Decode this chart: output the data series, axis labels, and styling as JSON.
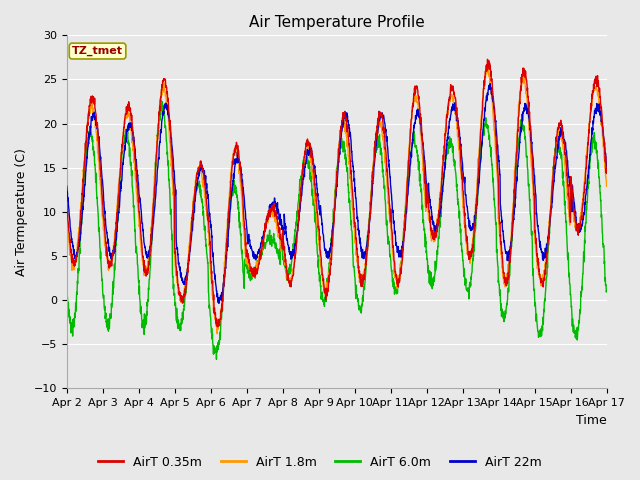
{
  "title": "Air Temperature Profile",
  "xlabel": "Time",
  "ylabel": "Air Termperature (C)",
  "ylim": [
    -10,
    30
  ],
  "xlim": [
    0,
    15
  ],
  "background_color": "#e8e8e8",
  "plot_bg_color": "#e8e8e8",
  "colors": {
    "AirT 0.35m": "#dd0000",
    "AirT 1.8m": "#ff9900",
    "AirT 6.0m": "#00bb00",
    "AirT 22m": "#0000cc"
  },
  "legend_labels": [
    "AirT 0.35m",
    "AirT 1.8m",
    "AirT 6.0m",
    "AirT 22m"
  ],
  "annotation_text": "TZ_tmet",
  "annotation_color": "#990000",
  "annotation_bg": "#ffffcc",
  "x_tick_labels": [
    "Apr 2",
    "Apr 3",
    "Apr 4",
    "Apr 5",
    "Apr 6",
    "Apr 7",
    "Apr 8",
    "Apr 9",
    "Apr 10",
    "Apr 11",
    "Apr 12",
    "Apr 13",
    "Apr 14",
    "Apr 15",
    "Apr 16",
    "Apr 17"
  ],
  "n_days": 15,
  "points_per_day": 144,
  "title_fontsize": 11,
  "tick_fontsize": 8,
  "label_fontsize": 9,
  "linewidth": 1.0,
  "peaks_035": [
    23,
    22,
    25,
    15.5,
    17.5,
    10.5,
    18,
    21,
    21,
    24,
    24,
    27,
    26,
    20,
    25
  ],
  "troughs_035": [
    4,
    4,
    3,
    0,
    -3,
    3,
    2,
    1,
    2,
    2,
    7,
    5,
    2,
    2,
    8
  ],
  "peaks_18": [
    22,
    21,
    24,
    15,
    17,
    10,
    17,
    20,
    20,
    23,
    23,
    26,
    25,
    19,
    24
  ],
  "troughs_18": [
    4,
    4,
    3,
    0,
    -3,
    3,
    2,
    1,
    2,
    2,
    7,
    5,
    2,
    2,
    8
  ],
  "peaks_60": [
    19,
    19,
    22,
    13,
    13,
    7,
    16,
    18,
    18,
    18,
    18,
    20,
    20,
    18,
    18
  ],
  "troughs_60": [
    -3,
    -3,
    -3,
    -3,
    -6,
    3,
    3,
    0,
    -1,
    1,
    2,
    1,
    -2,
    -4,
    -4
  ],
  "peaks_22m": [
    21,
    20,
    22,
    15,
    16,
    11,
    17,
    21,
    21,
    21,
    22,
    24,
    22,
    19,
    22
  ],
  "troughs_22m": [
    5,
    5,
    5,
    2,
    0,
    5,
    5,
    5,
    5,
    5,
    8,
    8,
    5,
    5,
    8
  ]
}
